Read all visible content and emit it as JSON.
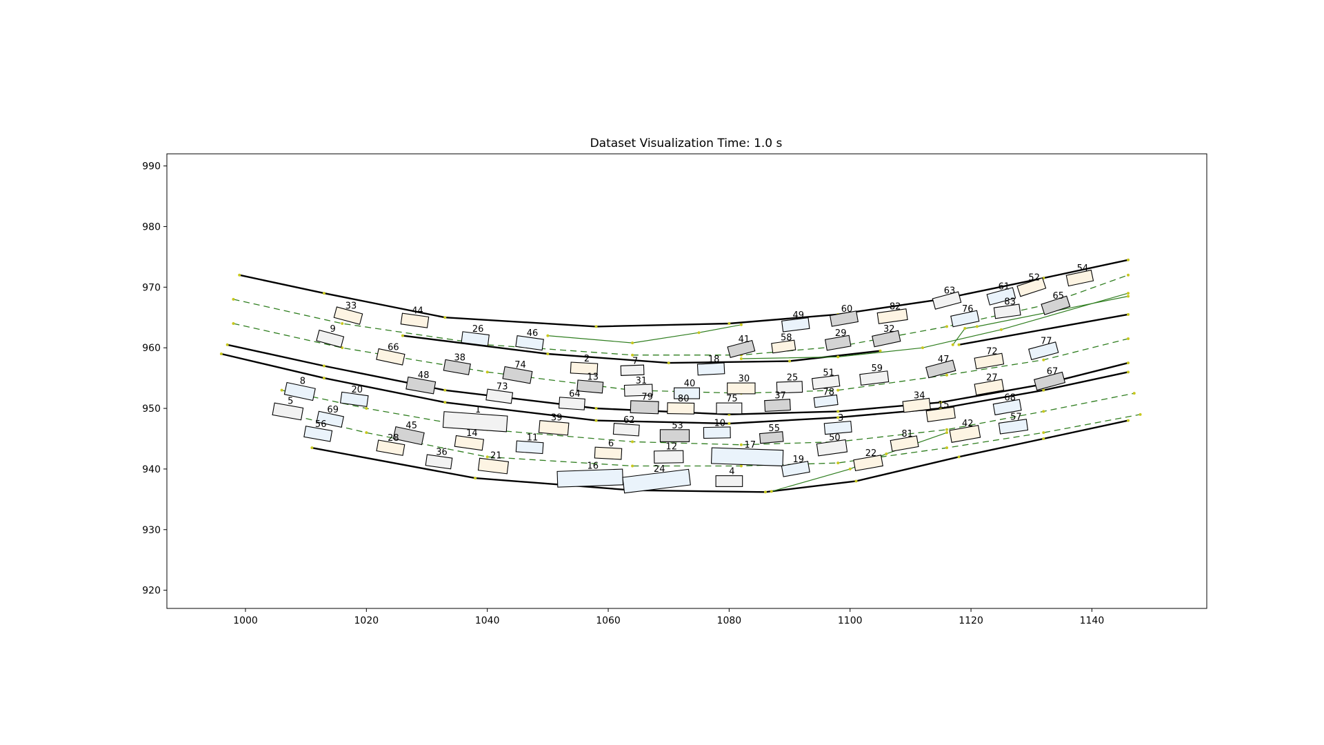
{
  "chart_data": {
    "type": "scatter",
    "title": "Dataset Visualization Time: 1.0 s",
    "xlabel": "",
    "ylabel": "",
    "xlim": [
      987,
      1159
    ],
    "ylim": [
      917,
      992
    ],
    "xticks": [
      1000,
      1020,
      1040,
      1060,
      1080,
      1100,
      1120,
      1140
    ],
    "yticks": [
      920,
      930,
      940,
      950,
      960,
      970,
      980,
      990
    ],
    "grid": false,
    "colors": {
      "boundary": "#000000",
      "centerline": "#2e7d1e",
      "waypoint": "#c8c81e",
      "vehicle_edge": "#000000"
    },
    "vehicle_fills": {
      "a": "#fdf4e3",
      "b": "#eaf3fb",
      "c": "#f2f2f2",
      "d": "#d3d3d3"
    },
    "boundaries": [
      [
        [
          999,
          972
        ],
        [
          1013,
          969
        ],
        [
          1033,
          965
        ],
        [
          1058,
          963.5
        ],
        [
          1080,
          964
        ],
        [
          1098,
          965.5
        ],
        [
          1115,
          968
        ],
        [
          1132,
          971.5
        ],
        [
          1146,
          974.5
        ]
      ],
      [
        [
          997,
          960.5
        ],
        [
          1013,
          957
        ],
        [
          1033,
          953
        ],
        [
          1058,
          950
        ],
        [
          1080,
          949
        ],
        [
          1098,
          949.5
        ],
        [
          1115,
          951
        ],
        [
          1132,
          954
        ],
        [
          1146,
          957.5
        ]
      ],
      [
        [
          1026,
          962
        ],
        [
          1050,
          959
        ],
        [
          1070,
          957.5
        ],
        [
          1090,
          957.8
        ],
        [
          1105,
          959.5
        ]
      ],
      [
        [
          1118,
          960.5
        ],
        [
          1146,
          965.5
        ]
      ],
      [
        [
          996,
          959
        ],
        [
          1013,
          955
        ],
        [
          1033,
          951
        ],
        [
          1058,
          948
        ],
        [
          1080,
          947.5
        ],
        [
          1098,
          948.5
        ],
        [
          1115,
          950
        ],
        [
          1132,
          953
        ],
        [
          1146,
          956
        ]
      ],
      [
        [
          1011,
          943.5
        ],
        [
          1038,
          938.5
        ],
        [
          1064,
          936.5
        ],
        [
          1086,
          936.2
        ],
        [
          1101,
          938
        ],
        [
          1118,
          942
        ],
        [
          1132,
          945
        ],
        [
          1146,
          948
        ]
      ]
    ],
    "centerlines_dashed": [
      [
        [
          998,
          968
        ],
        [
          1016,
          964
        ],
        [
          1040,
          960.5
        ],
        [
          1064,
          958.8
        ],
        [
          1082,
          958.8
        ],
        [
          1098,
          960.2
        ],
        [
          1116,
          963.5
        ],
        [
          1132,
          967
        ],
        [
          1146,
          972
        ]
      ],
      [
        [
          998,
          964
        ],
        [
          1016,
          960
        ],
        [
          1040,
          956
        ],
        [
          1064,
          953
        ],
        [
          1082,
          952.5
        ],
        [
          1098,
          953
        ],
        [
          1116,
          955.5
        ],
        [
          1132,
          958
        ],
        [
          1146,
          961.5
        ]
      ],
      [
        [
          1006,
          953
        ],
        [
          1020,
          950
        ],
        [
          1040,
          946.5
        ],
        [
          1064,
          944.5
        ],
        [
          1082,
          944
        ],
        [
          1098,
          944.5
        ],
        [
          1116,
          946.5
        ],
        [
          1132,
          949.5
        ],
        [
          1147,
          952.5
        ]
      ],
      [
        [
          1005,
          949.5
        ],
        [
          1020,
          946
        ],
        [
          1040,
          942
        ],
        [
          1064,
          940.5
        ],
        [
          1082,
          940.5
        ],
        [
          1098,
          941
        ],
        [
          1116,
          943.5
        ],
        [
          1132,
          946
        ],
        [
          1148,
          949
        ]
      ]
    ],
    "centerlines_solid": [
      [
        [
          1050,
          962
        ],
        [
          1064,
          960.8
        ],
        [
          1075,
          962.5
        ],
        [
          1082,
          963.8
        ]
      ],
      [
        [
          1082,
          958.2
        ],
        [
          1098,
          958.5
        ],
        [
          1112,
          960
        ],
        [
          1125,
          963
        ],
        [
          1146,
          969
        ]
      ],
      [
        [
          1117,
          960.5
        ],
        [
          1119,
          963.2
        ],
        [
          1121,
          963.5
        ],
        [
          1146,
          968.5
        ]
      ],
      [
        [
          1087,
          936.3
        ],
        [
          1100,
          940
        ],
        [
          1106,
          942.5
        ],
        [
          1116,
          946
        ]
      ]
    ],
    "vehicles": [
      {
        "id": "1",
        "x": 1038,
        "y": 947.8,
        "w": 10.5,
        "h": 2.6,
        "a": -4,
        "fill": "c"
      },
      {
        "id": "2",
        "x": 1056,
        "y": 956.6,
        "w": 4.4,
        "h": 1.8,
        "a": -3,
        "fill": "a"
      },
      {
        "id": "3",
        "x": 1098,
        "y": 946.8,
        "w": 4.4,
        "h": 1.8,
        "a": 5,
        "fill": "b"
      },
      {
        "id": "4",
        "x": 1080,
        "y": 938,
        "w": 4.4,
        "h": 1.8,
        "a": 0,
        "fill": "c"
      },
      {
        "id": "5",
        "x": 1007,
        "y": 949.5,
        "w": 4.8,
        "h": 2,
        "a": -10,
        "fill": "c"
      },
      {
        "id": "6",
        "x": 1060,
        "y": 942.6,
        "w": 4.4,
        "h": 1.8,
        "a": -3,
        "fill": "a"
      },
      {
        "id": "7",
        "x": 1064,
        "y": 956.3,
        "w": 3.8,
        "h": 1.6,
        "a": 2,
        "fill": "c"
      },
      {
        "id": "8",
        "x": 1009,
        "y": 952.8,
        "w": 4.8,
        "h": 2,
        "a": -12,
        "fill": "b"
      },
      {
        "id": "9",
        "x": 1014,
        "y": 961.5,
        "w": 4.2,
        "h": 1.8,
        "a": -15,
        "fill": "c"
      },
      {
        "id": "10",
        "x": 1078,
        "y": 946,
        "w": 4.4,
        "h": 1.8,
        "a": 1,
        "fill": "b"
      },
      {
        "id": "11",
        "x": 1047,
        "y": 943.6,
        "w": 4.4,
        "h": 1.8,
        "a": -4,
        "fill": "b"
      },
      {
        "id": "12",
        "x": 1070,
        "y": 942,
        "w": 4.8,
        "h": 2,
        "a": 1,
        "fill": "c"
      },
      {
        "id": "13",
        "x": 1057,
        "y": 953.6,
        "w": 4.2,
        "h": 1.8,
        "a": -5,
        "fill": "d"
      },
      {
        "id": "14",
        "x": 1037,
        "y": 944.3,
        "w": 4.6,
        "h": 1.8,
        "a": -8,
        "fill": "a"
      },
      {
        "id": "15",
        "x": 1115,
        "y": 949,
        "w": 4.6,
        "h": 1.8,
        "a": 8,
        "fill": "a"
      },
      {
        "id": "16",
        "x": 1057,
        "y": 938.5,
        "w": 10.8,
        "h": 2.6,
        "a": 2,
        "fill": "b"
      },
      {
        "id": "17",
        "x": 1083,
        "y": 942,
        "w": 11.8,
        "h": 2.6,
        "a": -2,
        "fill": "b"
      },
      {
        "id": "18",
        "x": 1077,
        "y": 956.5,
        "w": 4.4,
        "h": 1.8,
        "a": 3,
        "fill": "b"
      },
      {
        "id": "19",
        "x": 1091,
        "y": 940,
        "w": 4.4,
        "h": 1.8,
        "a": 10,
        "fill": "b"
      },
      {
        "id": "20",
        "x": 1018,
        "y": 951.5,
        "w": 4.4,
        "h": 1.8,
        "a": -8,
        "fill": "b"
      },
      {
        "id": "21",
        "x": 1041,
        "y": 940.5,
        "w": 4.8,
        "h": 2,
        "a": -7,
        "fill": "a"
      },
      {
        "id": "22",
        "x": 1103,
        "y": 941,
        "w": 4.6,
        "h": 1.8,
        "a": 10,
        "fill": "a"
      },
      {
        "id": "24",
        "x": 1068,
        "y": 938,
        "w": 11,
        "h": 2.6,
        "a": 7,
        "fill": "b"
      },
      {
        "id": "25",
        "x": 1090,
        "y": 953.5,
        "w": 4.2,
        "h": 1.8,
        "a": 2,
        "fill": "c"
      },
      {
        "id": "26",
        "x": 1038,
        "y": 961.5,
        "w": 4.4,
        "h": 1.8,
        "a": -7,
        "fill": "b"
      },
      {
        "id": "27",
        "x": 1123,
        "y": 953.5,
        "w": 4.6,
        "h": 1.8,
        "a": 10,
        "fill": "a"
      },
      {
        "id": "28",
        "x": 1024,
        "y": 943.5,
        "w": 4.4,
        "h": 1.8,
        "a": -10,
        "fill": "a"
      },
      {
        "id": "29",
        "x": 1098,
        "y": 960.8,
        "w": 4,
        "h": 1.8,
        "a": 10,
        "fill": "d"
      },
      {
        "id": "30",
        "x": 1082,
        "y": 953.3,
        "w": 4.6,
        "h": 1.8,
        "a": 0,
        "fill": "a"
      },
      {
        "id": "31",
        "x": 1065,
        "y": 953,
        "w": 4.6,
        "h": 1.8,
        "a": 2,
        "fill": "c"
      },
      {
        "id": "32",
        "x": 1106,
        "y": 961.5,
        "w": 4.4,
        "h": 1.8,
        "a": 12,
        "fill": "d"
      },
      {
        "id": "33",
        "x": 1017,
        "y": 965.3,
        "w": 4.4,
        "h": 1.8,
        "a": -15,
        "fill": "a"
      },
      {
        "id": "34",
        "x": 1111,
        "y": 950.5,
        "w": 4.4,
        "h": 1.8,
        "a": 7,
        "fill": "a"
      },
      {
        "id": "36",
        "x": 1032,
        "y": 941.2,
        "w": 4.2,
        "h": 1.8,
        "a": -8,
        "fill": "c"
      },
      {
        "id": "37",
        "x": 1088,
        "y": 950.5,
        "w": 4.2,
        "h": 1.8,
        "a": 3,
        "fill": "d"
      },
      {
        "id": "38",
        "x": 1035,
        "y": 956.8,
        "w": 4.2,
        "h": 1.8,
        "a": -10,
        "fill": "d"
      },
      {
        "id": "39",
        "x": 1051,
        "y": 946.8,
        "w": 4.8,
        "h": 2,
        "a": -5,
        "fill": "a"
      },
      {
        "id": "40",
        "x": 1073,
        "y": 952.5,
        "w": 4.2,
        "h": 1.8,
        "a": 0,
        "fill": "b"
      },
      {
        "id": "41",
        "x": 1082,
        "y": 959.8,
        "w": 4.2,
        "h": 1.8,
        "a": 15,
        "fill": "d"
      },
      {
        "id": "42",
        "x": 1119,
        "y": 945.8,
        "w": 4.8,
        "h": 2,
        "a": 10,
        "fill": "a"
      },
      {
        "id": "44",
        "x": 1028,
        "y": 964.5,
        "w": 4.4,
        "h": 1.8,
        "a": -8,
        "fill": "a"
      },
      {
        "id": "45",
        "x": 1027,
        "y": 945.5,
        "w": 4.8,
        "h": 2,
        "a": -12,
        "fill": "d"
      },
      {
        "id": "46",
        "x": 1047,
        "y": 960.8,
        "w": 4.4,
        "h": 1.8,
        "a": -8,
        "fill": "b"
      },
      {
        "id": "47",
        "x": 1115,
        "y": 956.5,
        "w": 4.6,
        "h": 1.8,
        "a": 15,
        "fill": "d"
      },
      {
        "id": "48",
        "x": 1029,
        "y": 953.8,
        "w": 4.6,
        "h": 2,
        "a": -10,
        "fill": "d"
      },
      {
        "id": "49",
        "x": 1091,
        "y": 963.8,
        "w": 4.4,
        "h": 1.8,
        "a": 7,
        "fill": "b"
      },
      {
        "id": "50",
        "x": 1097,
        "y": 943.5,
        "w": 4.8,
        "h": 2,
        "a": 8,
        "fill": "c"
      },
      {
        "id": "51",
        "x": 1096,
        "y": 954.3,
        "w": 4.4,
        "h": 1.8,
        "a": 7,
        "fill": "c"
      },
      {
        "id": "52",
        "x": 1130,
        "y": 970,
        "w": 4.4,
        "h": 1.8,
        "a": 18,
        "fill": "a"
      },
      {
        "id": "53",
        "x": 1071,
        "y": 945.5,
        "w": 4.8,
        "h": 2,
        "a": 0,
        "fill": "d"
      },
      {
        "id": "54",
        "x": 1138,
        "y": 971.5,
        "w": 4.2,
        "h": 1.8,
        "a": 12,
        "fill": "a"
      },
      {
        "id": "55",
        "x": 1087,
        "y": 945.2,
        "w": 3.8,
        "h": 1.6,
        "a": 5,
        "fill": "d"
      },
      {
        "id": "56",
        "x": 1012,
        "y": 945.8,
        "w": 4.4,
        "h": 1.8,
        "a": -10,
        "fill": "b"
      },
      {
        "id": "57",
        "x": 1127,
        "y": 947,
        "w": 4.6,
        "h": 1.8,
        "a": 8,
        "fill": "b"
      },
      {
        "id": "58",
        "x": 1089,
        "y": 960.2,
        "w": 3.8,
        "h": 1.6,
        "a": 8,
        "fill": "a"
      },
      {
        "id": "59",
        "x": 1104,
        "y": 955,
        "w": 4.6,
        "h": 1.8,
        "a": 7,
        "fill": "c"
      },
      {
        "id": "60",
        "x": 1099,
        "y": 964.8,
        "w": 4.4,
        "h": 1.8,
        "a": 10,
        "fill": "d"
      },
      {
        "id": "61",
        "x": 1125,
        "y": 968.5,
        "w": 4.4,
        "h": 1.8,
        "a": 15,
        "fill": "b"
      },
      {
        "id": "62",
        "x": 1063,
        "y": 946.5,
        "w": 4.2,
        "h": 1.8,
        "a": -4,
        "fill": "c"
      },
      {
        "id": "63",
        "x": 1116,
        "y": 967.8,
        "w": 4.4,
        "h": 1.8,
        "a": 15,
        "fill": "c"
      },
      {
        "id": "64",
        "x": 1054,
        "y": 950.8,
        "w": 4.2,
        "h": 1.8,
        "a": -4,
        "fill": "c"
      },
      {
        "id": "65",
        "x": 1134,
        "y": 967,
        "w": 4.4,
        "h": 1.8,
        "a": 18,
        "fill": "d"
      },
      {
        "id": "66",
        "x": 1024,
        "y": 958.5,
        "w": 4.4,
        "h": 1.8,
        "a": -12,
        "fill": "a"
      },
      {
        "id": "67",
        "x": 1133,
        "y": 954.5,
        "w": 4.8,
        "h": 1.8,
        "a": 15,
        "fill": "d"
      },
      {
        "id": "68",
        "x": 1126,
        "y": 950.2,
        "w": 4.4,
        "h": 1.8,
        "a": 10,
        "fill": "b"
      },
      {
        "id": "69",
        "x": 1014,
        "y": 948.2,
        "w": 4.2,
        "h": 1.8,
        "a": -12,
        "fill": "b"
      },
      {
        "id": "72",
        "x": 1123,
        "y": 957.8,
        "w": 4.6,
        "h": 1.8,
        "a": 10,
        "fill": "a"
      },
      {
        "id": "73",
        "x": 1042,
        "y": 952,
        "w": 4.2,
        "h": 1.8,
        "a": -8,
        "fill": "c"
      },
      {
        "id": "74",
        "x": 1045,
        "y": 955.5,
        "w": 4.6,
        "h": 2,
        "a": -10,
        "fill": "d"
      },
      {
        "id": "75",
        "x": 1080,
        "y": 950,
        "w": 4.2,
        "h": 1.8,
        "a": 0,
        "fill": "c"
      },
      {
        "id": "76",
        "x": 1119,
        "y": 964.8,
        "w": 4.4,
        "h": 1.8,
        "a": 12,
        "fill": "b"
      },
      {
        "id": "77",
        "x": 1132,
        "y": 959.5,
        "w": 4.6,
        "h": 1.8,
        "a": 15,
        "fill": "b"
      },
      {
        "id": "78",
        "x": 1096,
        "y": 951.2,
        "w": 3.8,
        "h": 1.6,
        "a": 7,
        "fill": "b"
      },
      {
        "id": "79",
        "x": 1066,
        "y": 950.2,
        "w": 4.6,
        "h": 2,
        "a": -2,
        "fill": "d"
      },
      {
        "id": "80",
        "x": 1072,
        "y": 950,
        "w": 4.4,
        "h": 1.8,
        "a": -1,
        "fill": "a"
      },
      {
        "id": "81",
        "x": 1109,
        "y": 944.2,
        "w": 4.4,
        "h": 1.8,
        "a": 10,
        "fill": "a"
      },
      {
        "id": "82",
        "x": 1107,
        "y": 965.2,
        "w": 4.8,
        "h": 1.8,
        "a": 8,
        "fill": "a"
      },
      {
        "id": "83",
        "x": 1126,
        "y": 966,
        "w": 4.2,
        "h": 1.8,
        "a": 8,
        "fill": "c"
      }
    ]
  }
}
